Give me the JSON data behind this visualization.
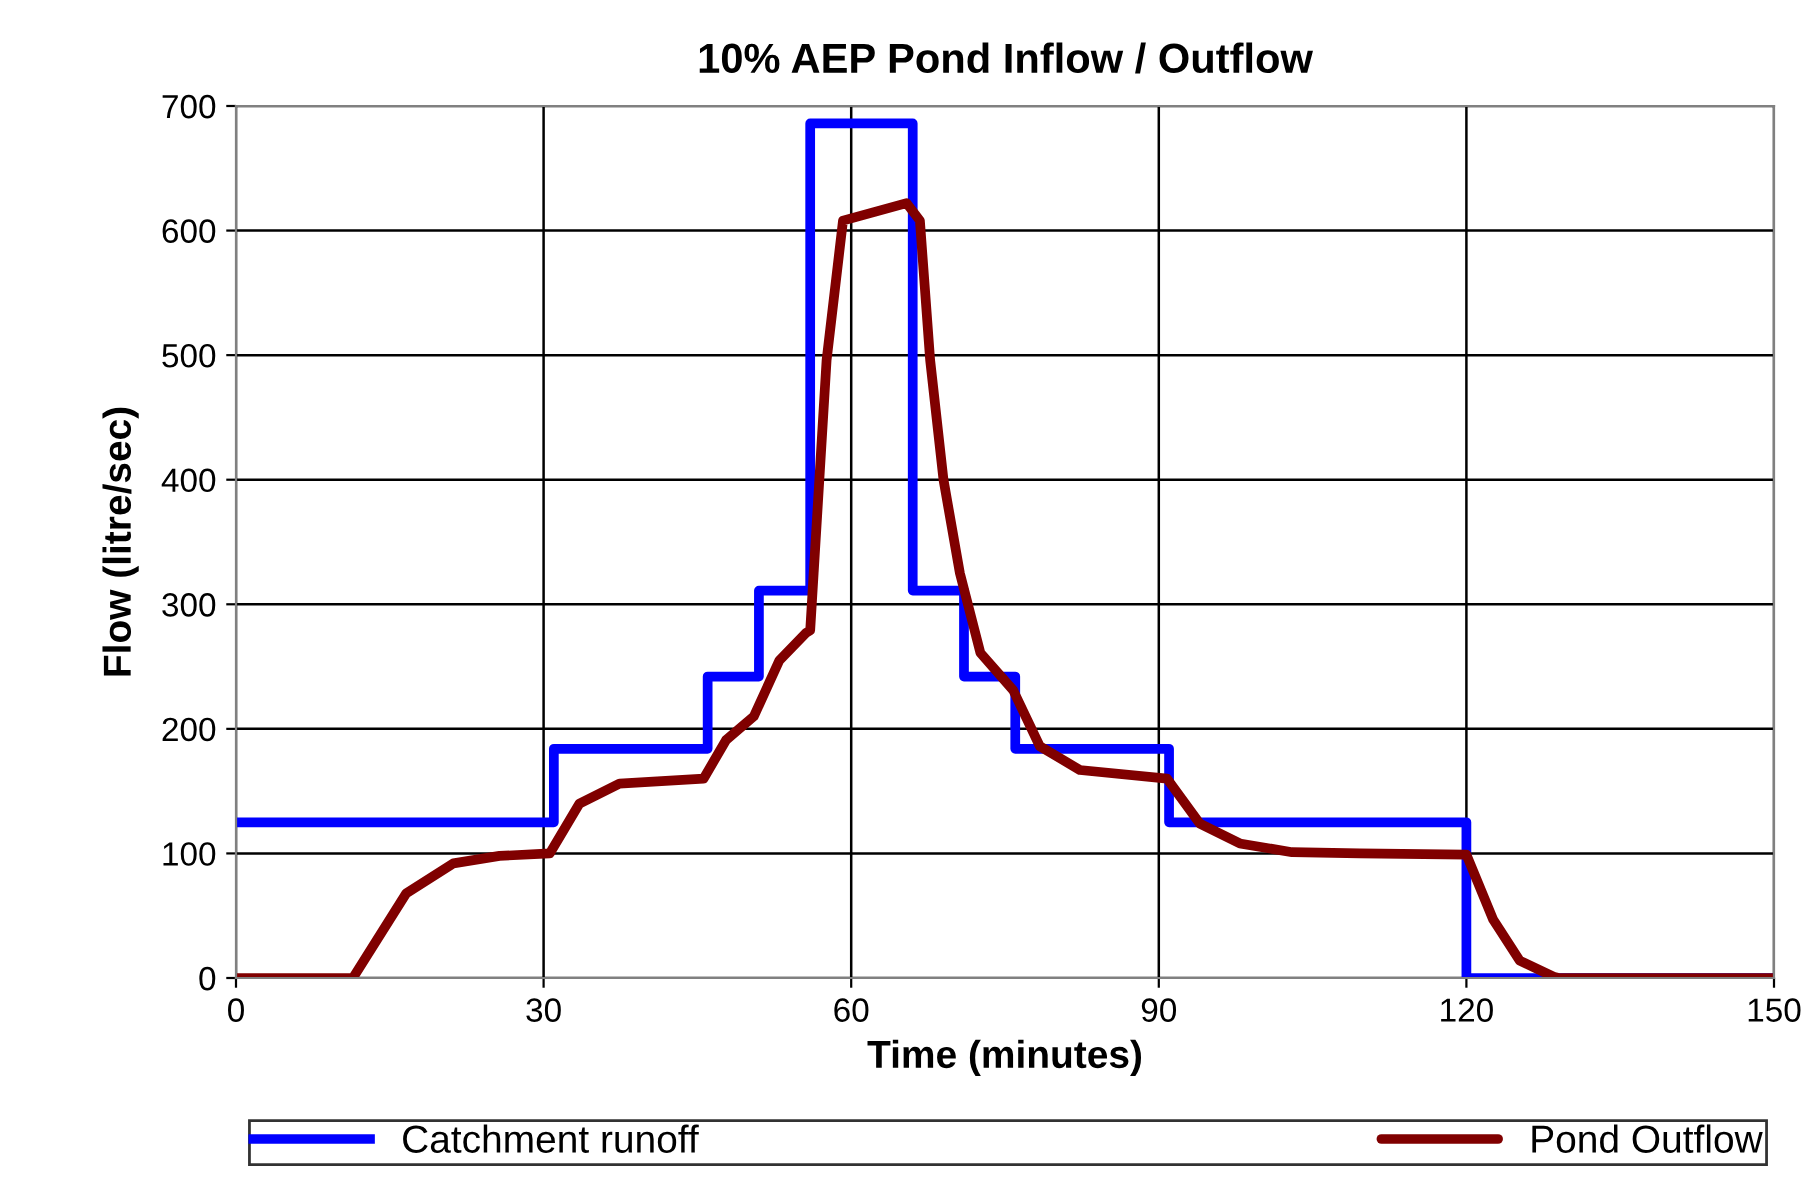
{
  "chart_data": {
    "type": "line",
    "title": "10% AEP Pond Inflow / Outflow",
    "xlabel": "Time (minutes)",
    "ylabel": "Flow (litre/sec)",
    "xlim": [
      0,
      150
    ],
    "xticks": [
      0,
      30,
      60,
      90,
      120,
      150
    ],
    "ylim": [
      0,
      700
    ],
    "yticks": [
      0,
      100,
      200,
      300,
      400,
      500,
      600,
      700
    ],
    "grid": true,
    "legend": "bottom",
    "series": [
      {
        "name": "Catchment runoff",
        "type": "step",
        "color": "#0000ff",
        "x": [
          0,
          31,
          46,
          51,
          56,
          66,
          71,
          76,
          91,
          120,
          150
        ],
        "values": [
          125,
          184,
          242,
          311,
          686,
          311,
          242,
          184,
          125,
          0,
          0
        ]
      },
      {
        "name": "Pond Outflow",
        "color": "#800000",
        "x": [
          0,
          11.4,
          16.6,
          21.2,
          25.7,
          30.6,
          33.5,
          37.4,
          45.6,
          47.8,
          50.5,
          53,
          55.6,
          56,
          57.6,
          59.2,
          65.4,
          66.7,
          67.7,
          69,
          70.6,
          72.6,
          75.8,
          78.4,
          82.3,
          90.8,
          94,
          97.9,
          103,
          109.6,
          120,
          122.6,
          125.2,
          128.5,
          129,
          150
        ],
        "values": [
          0,
          0,
          68,
          92,
          98,
          100,
          140,
          156,
          160,
          191,
          210,
          255,
          277,
          279,
          496,
          608,
          622,
          608,
          496,
          400,
          325,
          261,
          231,
          186,
          167,
          160,
          124,
          108,
          101,
          100,
          99,
          47,
          14,
          1,
          0,
          0
        ]
      }
    ]
  }
}
